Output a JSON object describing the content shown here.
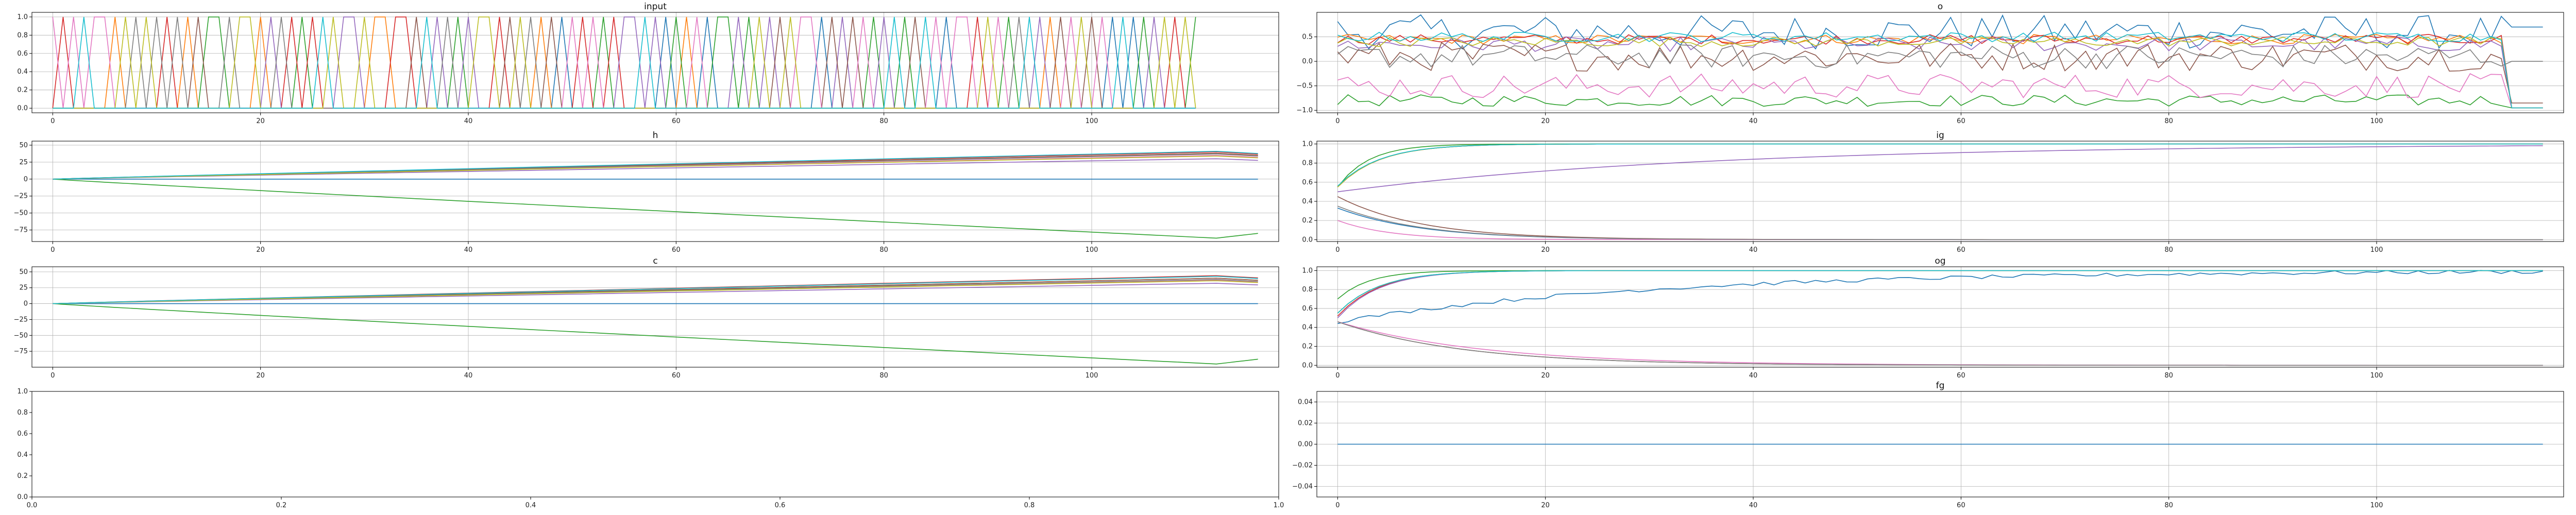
{
  "palette": [
    "#1f77b4",
    "#ff7f0e",
    "#2ca02c",
    "#d62728",
    "#9467bd",
    "#8c564b",
    "#e377c2",
    "#7f7f7f",
    "#bcbd22",
    "#17becf"
  ],
  "chart_data": [
    {
      "id": "input",
      "type": "line",
      "title": "input",
      "xlim": [
        -2,
        118
      ],
      "ylim": [
        -0.05,
        1.05
      ],
      "xticks": [
        "0",
        "20",
        "40",
        "60",
        "80",
        "100"
      ],
      "xtick_values": [
        0,
        20,
        40,
        60,
        80,
        100
      ],
      "yticks": [
        "0.0",
        "0.2",
        "0.4",
        "0.6",
        "0.8",
        "1.0"
      ],
      "ytick_values": [
        0,
        0.2,
        0.4,
        0.6,
        0.8,
        1.0
      ],
      "grid": true,
      "description": "one-hot input: at each step exactly one of 10 series is 1.0, others 0.0",
      "one_hot_steps": 111
    },
    {
      "id": "o",
      "type": "line",
      "title": "o",
      "xlim": [
        -2,
        118
      ],
      "ylim": [
        -1.05,
        1.0
      ],
      "xticks": [
        "0",
        "20",
        "40",
        "60",
        "80",
        "100"
      ],
      "xtick_values": [
        0,
        20,
        40,
        60,
        80,
        100
      ],
      "yticks": [
        "−1.0",
        "−0.5",
        "0.0",
        "0.5"
      ],
      "ytick_values": [
        -1.0,
        -0.5,
        0.0,
        0.5
      ],
      "grid": true,
      "series_levels": [
        0.6,
        0.45,
        -0.8,
        0.45,
        0.35,
        0.1,
        -0.5,
        0.1,
        0.4,
        0.5
      ],
      "series_noise": [
        0.35,
        0.1,
        0.12,
        0.1,
        0.15,
        0.3,
        0.25,
        0.25,
        0.1,
        0.1
      ],
      "final_values": [
        0.7,
        -0.95,
        -0.95,
        -0.95,
        -0.95,
        -0.85,
        -0.95,
        0.0,
        -0.95,
        -0.95
      ]
    },
    {
      "id": "h",
      "type": "line",
      "title": "h",
      "xlim": [
        -2,
        118
      ],
      "ylim": [
        -92,
        56
      ],
      "xticks": [
        "0",
        "20",
        "40",
        "60",
        "80",
        "100"
      ],
      "xtick_values": [
        0,
        20,
        40,
        60,
        80,
        100
      ],
      "yticks": [
        "−75",
        "−50",
        "−25",
        "0",
        "25",
        "50"
      ],
      "ytick_values": [
        -75,
        -50,
        -25,
        0,
        25,
        50
      ],
      "grid": true,
      "series_end_values": [
        0,
        38,
        -87,
        40,
        30,
        38,
        35,
        37,
        34,
        41
      ]
    },
    {
      "id": "ig",
      "type": "line",
      "title": "ig",
      "xlim": [
        -2,
        118
      ],
      "ylim": [
        -0.02,
        1.03
      ],
      "xticks": [
        "0",
        "20",
        "40",
        "60",
        "80",
        "100"
      ],
      "xtick_values": [
        0,
        20,
        40,
        60,
        80,
        100
      ],
      "yticks": [
        "0.0",
        "0.2",
        "0.4",
        "0.6",
        "0.8",
        "1.0"
      ],
      "ytick_values": [
        0,
        0.2,
        0.4,
        0.6,
        0.8,
        1.0
      ],
      "grid": true,
      "series_start": [
        0.33,
        0.55,
        0.55,
        0.55,
        0.5,
        0.45,
        0.2,
        0.35,
        0.55,
        0.56
      ],
      "series_end": [
        0.0,
        1.0,
        1.0,
        1.0,
        1.0,
        0.0,
        0.0,
        0.0,
        1.0,
        1.0
      ],
      "series_rate": [
        8,
        4,
        3,
        4,
        35,
        8,
        5,
        8,
        4,
        4
      ]
    },
    {
      "id": "c",
      "type": "line",
      "title": "c",
      "xlim": [
        -2,
        118
      ],
      "ylim": [
        -100,
        58
      ],
      "xticks": [
        "0",
        "20",
        "40",
        "60",
        "80",
        "100"
      ],
      "xtick_values": [
        0,
        20,
        40,
        60,
        80,
        100
      ],
      "yticks": [
        "−75",
        "−50",
        "−25",
        "0",
        "25",
        "50"
      ],
      "ytick_values": [
        -75,
        -50,
        -25,
        0,
        25,
        50
      ],
      "grid": true,
      "series_end_values": [
        0,
        40,
        -95,
        44,
        32,
        40,
        37,
        38,
        36,
        43
      ]
    },
    {
      "id": "og",
      "type": "line",
      "title": "og",
      "xlim": [
        -2,
        118
      ],
      "ylim": [
        -0.02,
        1.04
      ],
      "xticks": [
        "0",
        "20",
        "40",
        "60",
        "80",
        "100"
      ],
      "xtick_values": [
        0,
        20,
        40,
        60,
        80,
        100
      ],
      "yticks": [
        "0.0",
        "0.2",
        "0.4",
        "0.6",
        "0.8",
        "1.0"
      ],
      "ytick_values": [
        0,
        0.2,
        0.4,
        0.6,
        0.8,
        1.0
      ],
      "grid": true,
      "series_start": [
        0.46,
        0.55,
        0.7,
        0.52,
        0.5,
        0.46,
        0.46,
        0.46,
        0.55,
        0.55
      ],
      "series_end": [
        1.0,
        1.0,
        1.0,
        1.0,
        1.0,
        0.0,
        0.0,
        0.0,
        1.0,
        1.0
      ],
      "series_rate": [
        30,
        4,
        3,
        4,
        4,
        12,
        14,
        12,
        4,
        4
      ]
    },
    {
      "id": "empty",
      "type": "line",
      "title": "",
      "xlim": [
        0,
        1
      ],
      "ylim": [
        0,
        1
      ],
      "xticks": [
        "0.0",
        "0.2",
        "0.4",
        "0.6",
        "0.8",
        "1.0"
      ],
      "xtick_values": [
        0,
        0.2,
        0.4,
        0.6,
        0.8,
        1.0
      ],
      "yticks": [
        "0.0",
        "0.2",
        "0.4",
        "0.6",
        "0.8",
        "1.0"
      ],
      "ytick_values": [
        0,
        0.2,
        0.4,
        0.6,
        0.8,
        1.0
      ],
      "grid": false
    },
    {
      "id": "fg",
      "type": "line",
      "title": "fg",
      "xlim": [
        -2,
        118
      ],
      "ylim": [
        -0.05,
        0.05
      ],
      "xticks": [
        "0",
        "20",
        "40",
        "60",
        "80",
        "100"
      ],
      "xtick_values": [
        0,
        20,
        40,
        60,
        80,
        100
      ],
      "yticks": [
        "−0.04",
        "−0.02",
        "0.00",
        "0.02",
        "0.04"
      ],
      "ytick_values": [
        -0.04,
        -0.02,
        0,
        0.02,
        0.04
      ],
      "grid": true,
      "constant_value": 0.0
    }
  ]
}
